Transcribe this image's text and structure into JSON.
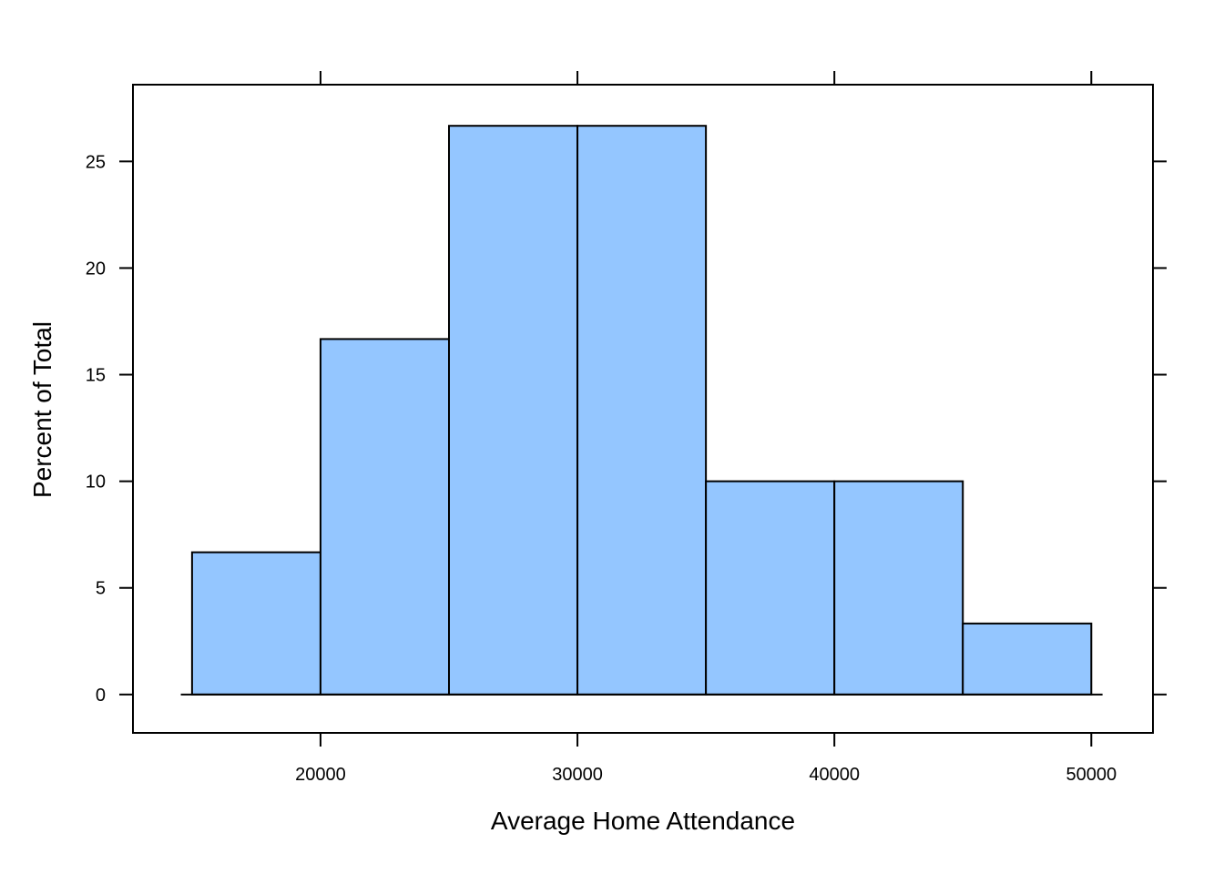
{
  "chart_data": {
    "type": "bar",
    "subtype": "histogram",
    "title": "",
    "xlabel": "Average Home Attendance",
    "ylabel": "Percent of Total",
    "bins": [
      {
        "start": 15000,
        "end": 20000,
        "value": 6.67
      },
      {
        "start": 20000,
        "end": 25000,
        "value": 16.67
      },
      {
        "start": 25000,
        "end": 30000,
        "value": 26.67
      },
      {
        "start": 30000,
        "end": 35000,
        "value": 26.67
      },
      {
        "start": 35000,
        "end": 40000,
        "value": 10.0
      },
      {
        "start": 40000,
        "end": 45000,
        "value": 10.0
      },
      {
        "start": 45000,
        "end": 50000,
        "value": 3.33
      }
    ],
    "xlim": [
      12700,
      52400
    ],
    "ylim": [
      -1.8,
      28.6
    ],
    "xticks": [
      20000,
      30000,
      40000,
      50000
    ],
    "xtick_labels": [
      "20000",
      "30000",
      "40000",
      "50000"
    ],
    "yticks": [
      0,
      5,
      10,
      15,
      20,
      25
    ],
    "ytick_labels": [
      "0",
      "5",
      "10",
      "15",
      "20",
      "25"
    ],
    "grid": false,
    "legend": "none",
    "colors": {
      "bar_fill": "#94c6ff",
      "bar_stroke": "#000000",
      "axis": "#000000"
    }
  }
}
